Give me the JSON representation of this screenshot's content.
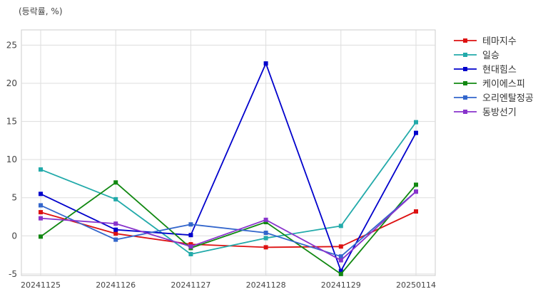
{
  "chart_data": {
    "type": "line",
    "title": "",
    "unit_label": "(등락률, %)",
    "xlabel": "",
    "ylabel": "",
    "categories": [
      "20241125",
      "20241126",
      "20241127",
      "20241128",
      "20241129",
      "20250114"
    ],
    "ylim": [
      -5.2,
      27
    ],
    "yticks": [
      -5,
      0,
      5,
      10,
      15,
      20,
      25
    ],
    "grid": true,
    "legend_position": "right",
    "series": [
      {
        "name": "테마지수",
        "color": "#dd1111",
        "values": [
          3.1,
          0.3,
          -1.1,
          -1.5,
          -1.4,
          3.2
        ]
      },
      {
        "name": "일승",
        "color": "#22aaaa",
        "values": [
          8.7,
          4.8,
          -2.4,
          -0.3,
          1.3,
          14.9
        ]
      },
      {
        "name": "현대힘스",
        "color": "#0000cc",
        "values": [
          5.5,
          0.8,
          0.1,
          22.6,
          -4.6,
          13.5
        ]
      },
      {
        "name": "케이에스피",
        "color": "#118811",
        "values": [
          -0.1,
          7.0,
          -1.6,
          1.8,
          -5.0,
          6.7
        ]
      },
      {
        "name": "오리엔탈정공",
        "color": "#3366cc",
        "values": [
          4.0,
          -0.5,
          1.5,
          0.4,
          -2.7,
          5.8
        ]
      },
      {
        "name": "동방선기",
        "color": "#8833cc",
        "values": [
          2.3,
          1.6,
          -1.4,
          2.1,
          -3.2,
          5.8
        ]
      }
    ]
  }
}
